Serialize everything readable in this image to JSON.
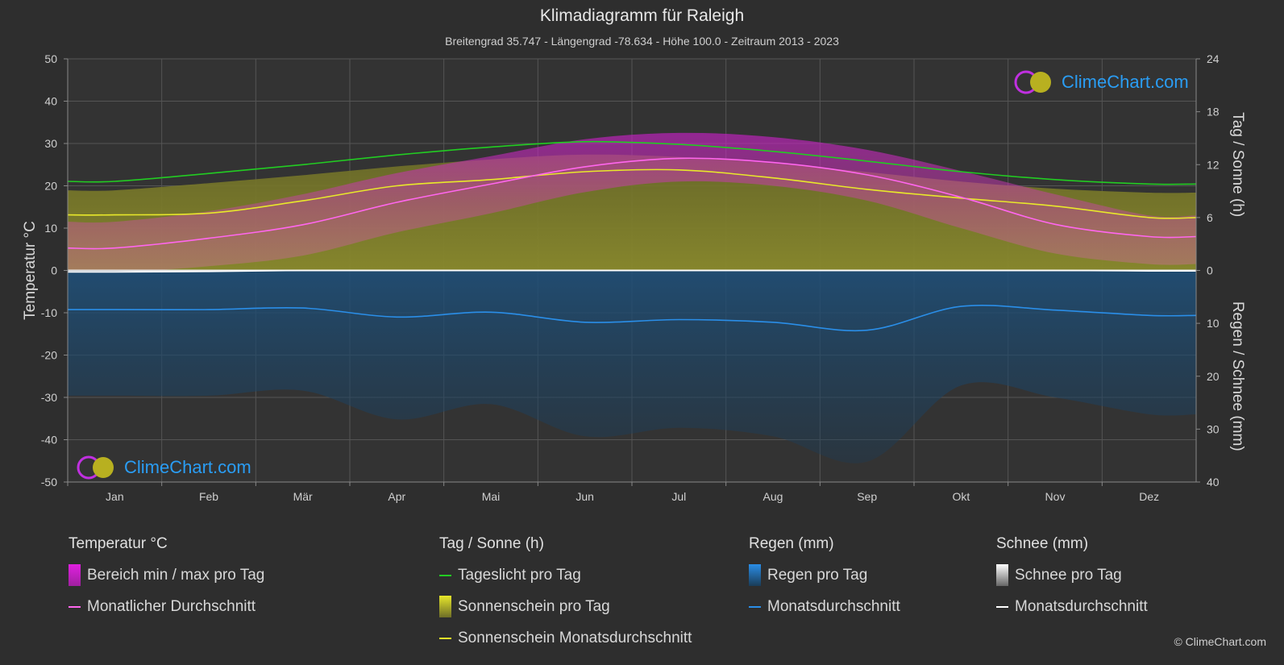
{
  "title": "Klimadiagramm für Raleigh",
  "subtitle": "Breitengrad 35.747 - Längengrad -78.634 - Höhe 100.0 - Zeitraum 2013 - 2023",
  "logo_text": "ClimeChart.com",
  "copyright": "© ClimeChart.com",
  "chart_data": {
    "type": "line",
    "months": [
      "Jan",
      "Feb",
      "Mär",
      "Apr",
      "Mai",
      "Jun",
      "Jul",
      "Aug",
      "Sep",
      "Okt",
      "Nov",
      "Dez"
    ],
    "axes": {
      "left": {
        "label": "Temperatur °C",
        "range": [
          -50,
          50
        ],
        "ticks": [
          50,
          40,
          30,
          20,
          10,
          0,
          -10,
          -20,
          -30,
          -40,
          -50
        ]
      },
      "right_top": {
        "label": "Tag / Sonne (h)",
        "range": [
          0,
          24
        ],
        "ticks": [
          24,
          18,
          12,
          6,
          0
        ]
      },
      "right_bottom": {
        "label": "Regen / Schnee (mm)",
        "range": [
          0,
          40
        ],
        "ticks": [
          10,
          20,
          30,
          40
        ]
      }
    },
    "series": [
      {
        "name": "Tageslicht pro Tag",
        "unit": "h",
        "color": "#22cc22",
        "values": [
          10.1,
          11.0,
          12.0,
          13.1,
          14.0,
          14.6,
          14.3,
          13.5,
          12.4,
          11.2,
          10.3,
          9.8
        ]
      },
      {
        "name": "Sonnenschein Monatsdurchschnitt",
        "unit": "h",
        "color": "#e8e82a",
        "values": [
          6.3,
          6.5,
          7.9,
          9.6,
          10.3,
          11.2,
          11.4,
          10.5,
          9.2,
          8.2,
          7.3,
          6.0
        ]
      },
      {
        "name": "Monatlicher Durchschnitt",
        "unit": "°C",
        "color": "#ff66ee",
        "values": [
          5.3,
          7.6,
          10.8,
          16.1,
          20.4,
          24.5,
          26.5,
          25.5,
          22.6,
          17.3,
          10.9,
          8.0
        ]
      },
      {
        "name": "Monatsdurchschnitt (Regen)",
        "unit": "mm",
        "color": "#2a8ee8",
        "values": [
          7.4,
          7.4,
          7.1,
          8.8,
          7.9,
          9.8,
          9.3,
          9.8,
          11.3,
          6.8,
          7.5,
          8.5
        ]
      },
      {
        "name": "Monatsdurchschnitt (Schnee)",
        "unit": "mm",
        "color": "#ffffff",
        "values": [
          0.3,
          0.2,
          0,
          0,
          0,
          0,
          0,
          0,
          0,
          0,
          0,
          0.1
        ]
      }
    ],
    "temp_range_daily": {
      "name": "Bereich min / max pro Tag",
      "max": [
        11.5,
        14,
        18,
        23,
        27,
        31,
        32.5,
        31.5,
        28.5,
        23.5,
        18,
        13
      ],
      "min": [
        -0.5,
        1,
        3.5,
        9,
        13.5,
        18.5,
        21,
        20,
        16.5,
        10,
        4,
        1.5
      ]
    }
  },
  "legend": {
    "groups": [
      {
        "title": "Temperatur °C",
        "items": [
          {
            "label": "Bereich min / max pro Tag",
            "kind": "box",
            "color": "#e020e0"
          },
          {
            "label": "Monatlicher Durchschnitt",
            "kind": "line",
            "color": "#ff66ee"
          }
        ]
      },
      {
        "title": "Tag / Sonne (h)",
        "items": [
          {
            "label": "Tageslicht pro Tag",
            "kind": "line",
            "color": "#22cc22"
          },
          {
            "label": "Sonnenschein pro Tag",
            "kind": "box",
            "color": "#c8c830"
          },
          {
            "label": "Sonnenschein Monatsdurchschnitt",
            "kind": "line",
            "color": "#e8e82a"
          }
        ]
      },
      {
        "title": "Regen (mm)",
        "items": [
          {
            "label": "Regen pro Tag",
            "kind": "box",
            "color": "#2a8ee8"
          },
          {
            "label": "Monatsdurchschnitt",
            "kind": "line",
            "color": "#2a8ee8"
          }
        ]
      },
      {
        "title": "Schnee (mm)",
        "items": [
          {
            "label": "Schnee pro Tag",
            "kind": "box",
            "color": "#dddddd"
          },
          {
            "label": "Monatsdurchschnitt",
            "kind": "line",
            "color": "#ffffff"
          }
        ]
      }
    ]
  }
}
